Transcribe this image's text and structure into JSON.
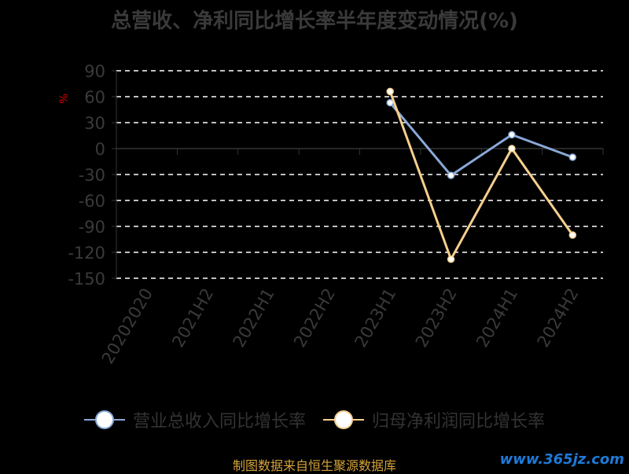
{
  "title": "总营收、净利同比增长率半年度变动情况(%)",
  "chart_data": {
    "type": "line",
    "title": "总营收、净利同比增长率半年度变动情况(%)",
    "ylabel": "%",
    "categories": [
      "20202020",
      "2021H2",
      "2022H1",
      "2022H2",
      "2023H1",
      "2023H2",
      "2024H1",
      "2024H2"
    ],
    "ylim": [
      -150,
      90
    ],
    "yticks": [
      90,
      60,
      30,
      0,
      -30,
      -60,
      -90,
      -120,
      -150
    ],
    "grid": true,
    "legend": "bottom",
    "series": [
      {
        "name": "营业总收入同比增长率",
        "color": "#8aa8d8",
        "values": [
          null,
          null,
          null,
          null,
          53,
          -31,
          16,
          -10
        ]
      },
      {
        "name": "归母净利润同比增长率",
        "color": "#f6cf8e",
        "values": [
          null,
          null,
          null,
          null,
          66,
          -128,
          0,
          -100
        ]
      }
    ]
  },
  "legend": [
    {
      "label": "营业总收入同比增长率",
      "color": "#8aa8d8"
    },
    {
      "label": "归母净利润同比增长率",
      "color": "#f6cf8e"
    }
  ],
  "source": "制图数据来自恒生聚源数据库",
  "watermark": "www.365jz.com"
}
